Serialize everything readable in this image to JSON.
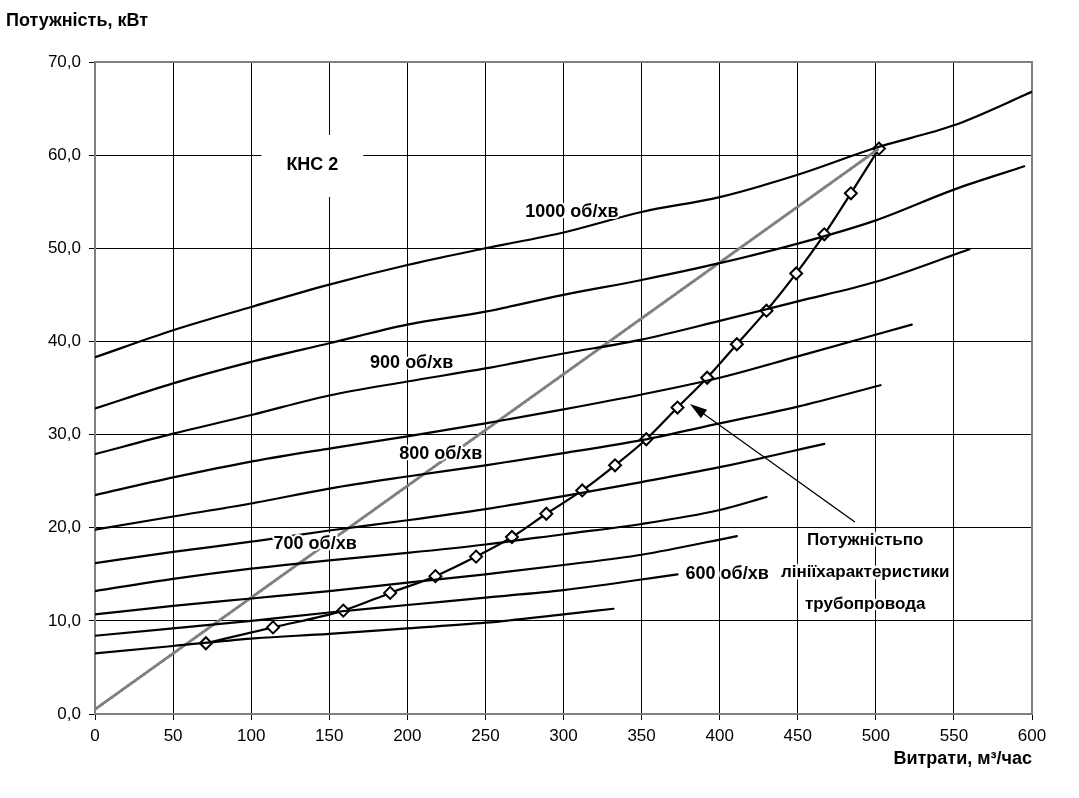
{
  "chart_data": {
    "type": "line",
    "xlabel": "Витрати, м³/час",
    "ylabel": "Потужність, кВт",
    "xlim": [
      0,
      600
    ],
    "xticks": [
      0,
      50,
      100,
      150,
      200,
      250,
      300,
      350,
      400,
      450,
      500,
      550,
      600
    ],
    "ylim": [
      0,
      70
    ],
    "yticks": [
      {
        "value": 0,
        "label": "0,0"
      },
      {
        "value": 10,
        "label": "10,0"
      },
      {
        "value": 20,
        "label": "20,0"
      },
      {
        "value": 30,
        "label": "30,0"
      },
      {
        "value": 40,
        "label": "40,0"
      },
      {
        "value": 50,
        "label": "50,0"
      },
      {
        "value": 60,
        "label": "60,0"
      },
      {
        "value": 70,
        "label": "70,0"
      }
    ],
    "grid": true,
    "legend": false,
    "marker": "none",
    "line_style": "solid",
    "series": [
      {
        "name": "1000 об/хв",
        "color": "#000000",
        "x": [
          0,
          50,
          100,
          150,
          200,
          250,
          300,
          350,
          400,
          450,
          500,
          550,
          600
        ],
        "values": [
          38.3,
          41.2,
          43.7,
          46.1,
          48.2,
          50.0,
          51.7,
          53.9,
          55.5,
          57.9,
          60.8,
          63.2,
          66.8
        ]
      },
      {
        "color": "#000000",
        "x": [
          0,
          50,
          100,
          150,
          200,
          250,
          300,
          350,
          400,
          450,
          500,
          550,
          595
        ],
        "values": [
          32.8,
          35.5,
          37.8,
          39.8,
          41.8,
          43.2,
          45.0,
          46.6,
          48.4,
          50.5,
          53.0,
          56.3,
          58.8
        ]
      },
      {
        "name": "900 об/хв",
        "color": "#000000",
        "x": [
          0,
          50,
          100,
          150,
          200,
          250,
          300,
          350,
          400,
          450,
          500,
          560
        ],
        "values": [
          27.9,
          30.1,
          32.1,
          34.2,
          35.7,
          37.1,
          38.7,
          40.2,
          42.2,
          44.3,
          46.4,
          49.9
        ]
      },
      {
        "color": "#000000",
        "x": [
          0,
          50,
          100,
          150,
          200,
          250,
          300,
          350,
          400,
          450,
          523
        ],
        "values": [
          23.5,
          25.4,
          27.1,
          28.5,
          29.8,
          31.2,
          32.7,
          34.3,
          36.1,
          38.4,
          41.8
        ]
      },
      {
        "name": "800 об/хв",
        "color": "#000000",
        "x": [
          0,
          50,
          100,
          150,
          200,
          250,
          300,
          350,
          400,
          450,
          503
        ],
        "values": [
          19.8,
          21.2,
          22.6,
          24.2,
          25.5,
          26.7,
          28.0,
          29.4,
          31.2,
          33.0,
          35.3
        ]
      },
      {
        "color": "#000000",
        "x": [
          0,
          50,
          100,
          150,
          200,
          250,
          300,
          350,
          400,
          467
        ],
        "values": [
          16.2,
          17.4,
          18.5,
          19.7,
          20.8,
          22.0,
          23.4,
          24.9,
          26.5,
          29.0
        ]
      },
      {
        "name": "700 об/хв",
        "color": "#000000",
        "x": [
          0,
          50,
          100,
          150,
          200,
          250,
          300,
          350,
          400,
          430
        ],
        "values": [
          13.2,
          14.5,
          15.6,
          16.5,
          17.3,
          18.2,
          19.3,
          20.4,
          21.9,
          23.3
        ]
      },
      {
        "color": "#000000",
        "x": [
          0,
          50,
          100,
          150,
          200,
          250,
          300,
          350,
          411
        ],
        "values": [
          10.7,
          11.6,
          12.4,
          13.2,
          14.1,
          15.0,
          16.0,
          17.1,
          19.1
        ]
      },
      {
        "name": "600 об/хв",
        "color": "#000000",
        "x": [
          0,
          50,
          100,
          150,
          200,
          250,
          300,
          373
        ],
        "values": [
          8.4,
          9.2,
          10.0,
          10.9,
          11.7,
          12.5,
          13.3,
          15.0
        ]
      },
      {
        "color": "#000000",
        "x": [
          0,
          50,
          100,
          150,
          200,
          250,
          300,
          332
        ],
        "values": [
          6.5,
          7.3,
          8.1,
          8.6,
          9.2,
          9.8,
          10.7,
          11.3
        ]
      },
      {
        "color": "#808080",
        "line_style": "dotted",
        "x": [
          0,
          502
        ],
        "values": [
          0.5,
          60.7
        ]
      },
      {
        "color": "#000000",
        "marker": "diamond",
        "x": [
          71,
          114,
          159,
          189,
          218,
          244,
          267,
          289,
          312,
          333,
          353,
          373,
          392,
          411,
          430,
          449,
          467,
          484,
          502
        ],
        "values": [
          7.6,
          9.3,
          11.1,
          13.0,
          14.8,
          16.9,
          19.0,
          21.5,
          24.0,
          26.7,
          29.5,
          32.9,
          36.1,
          39.7,
          43.3,
          47.3,
          51.5,
          55.9,
          60.7
        ]
      }
    ],
    "annotations": [
      "КНС 2",
      "Потужністьпо лініїхарактеристики трубопровода"
    ]
  }
}
